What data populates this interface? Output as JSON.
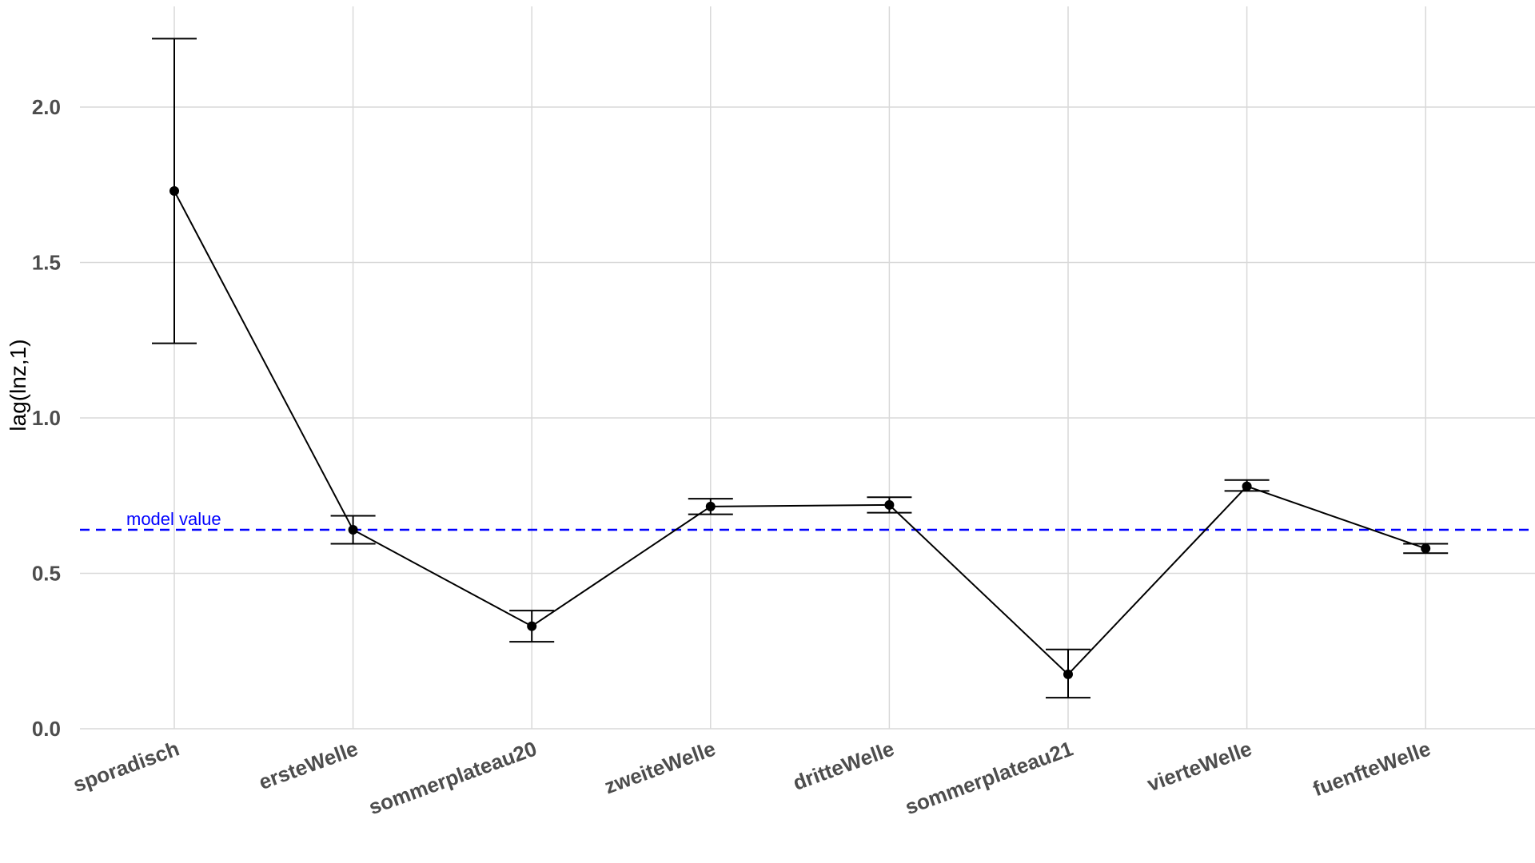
{
  "chart_data": {
    "type": "line",
    "ylabel": "lag(lnz,1)",
    "xlabel": "",
    "categories": [
      "sporadisch",
      "ersteWelle",
      "sommerplateau20",
      "zweiteWelle",
      "dritteWelle",
      "sommerplateau21",
      "vierteWelle",
      "fuenfteWelle"
    ],
    "series": [
      {
        "values": [
          1.73,
          0.64,
          0.33,
          0.715,
          0.72,
          0.175,
          0.78,
          0.58
        ],
        "lower": [
          1.24,
          0.595,
          0.28,
          0.69,
          0.695,
          0.1,
          0.765,
          0.565
        ],
        "upper": [
          2.22,
          0.685,
          0.38,
          0.74,
          0.745,
          0.255,
          0.8,
          0.595
        ]
      }
    ],
    "ylim": [
      0,
      2.3
    ],
    "yticks": [
      {
        "value": 0.0,
        "label": "0.0"
      },
      {
        "value": 0.5,
        "label": "0.5"
      },
      {
        "value": 1.0,
        "label": "1.0"
      },
      {
        "value": 1.5,
        "label": "1.5"
      },
      {
        "value": 2.0,
        "label": "2.0"
      }
    ],
    "grid": true,
    "reference_line": {
      "value": 0.64,
      "label": "model value",
      "color": "#0000ff",
      "style": "dashed"
    },
    "colors": {
      "series": "#000000",
      "grid": "#d9d9d9",
      "tick_text": "#4d4d4d"
    }
  }
}
